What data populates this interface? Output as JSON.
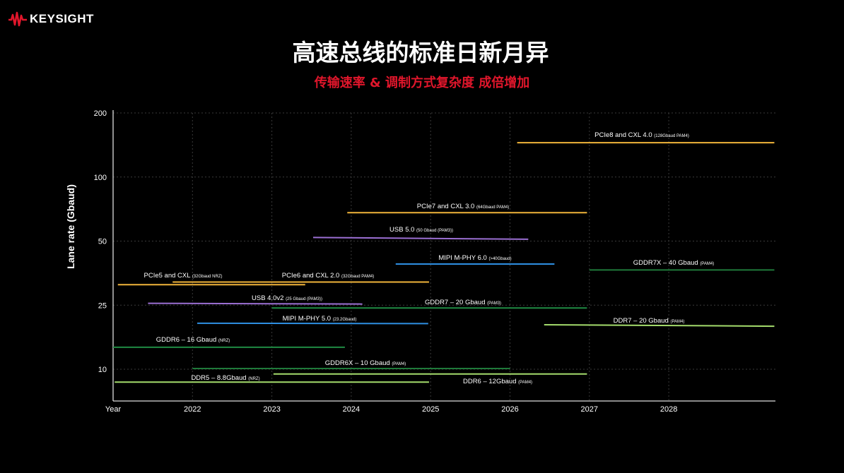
{
  "logo": {
    "text": "KEYSIGHT",
    "color": "#e0162b"
  },
  "header": {
    "title": "高速总线的标准日新月异",
    "subtitle": "传输速率 & 调制方式复杂度 成倍增加"
  },
  "chart_data": {
    "type": "timeline",
    "title": "高速总线的标准日新月异",
    "xlabel": "Year",
    "ylabel": "Lane rate (Gbaud)",
    "x_ticks": [
      "Year",
      "2022",
      "2023",
      "2024",
      "2025",
      "2026",
      "2027",
      "2028"
    ],
    "x_tick_values": [
      2021,
      2022,
      2023,
      2024,
      2025,
      2026,
      2027,
      2028
    ],
    "xlim": [
      2021,
      2029.35
    ],
    "y_ticks": [
      "10",
      "25",
      "50",
      "100",
      "200"
    ],
    "y_tick_values": [
      10,
      25,
      50,
      100,
      200
    ],
    "y_scale": "ordinal-log",
    "grid": true,
    "series": [
      {
        "name": "PCIe8 and CXL 4.0",
        "note": "(128Gbaud PAM4)",
        "x": [
          2026.09,
          2029.33
        ],
        "y": [
          145,
          145
        ],
        "color": "#f0b43a"
      },
      {
        "name": "PCIe7 and CXL 3.0",
        "note": "(64Gbaud PAM4)",
        "x": [
          2023.95,
          2026.97
        ],
        "y": [
          68,
          68
        ],
        "color": "#f0b43a"
      },
      {
        "name": "USB 5.0",
        "note": "(50 Gbaud (PAM3))",
        "x": [
          2023.52,
          2026.23
        ],
        "y": [
          52,
          51
        ],
        "color": "#9b6fd3"
      },
      {
        "name": "MIPI M-PHY 6.0",
        "note": "(>40Gbaud)",
        "x": [
          2024.56,
          2026.56
        ],
        "y": [
          39,
          39
        ],
        "color": "#2e8fe2"
      },
      {
        "name": "GDDR7X – 40 Gbaud",
        "note": "(PAM4)",
        "x": [
          2027.0,
          2029.33
        ],
        "y": [
          36.6,
          36.6
        ],
        "color": "#1f7a3a"
      },
      {
        "name": "PCIe5 and CXL",
        "note": "(32Gbaud NRZ)",
        "x": [
          2021.06,
          2023.42
        ],
        "y": [
          31.2,
          31.2
        ],
        "color": "#f0b43a"
      },
      {
        "name": "PCIe6 and CXL 2.0",
        "note": "(32Gbaud PAM4)",
        "x": [
          2021.75,
          2024.98
        ],
        "y": [
          32.1,
          32.1
        ],
        "color": "#f0b43a"
      },
      {
        "name": "USB 4.0v2",
        "note": "(25 Gbaud (PAM3))",
        "x": [
          2021.44,
          2024.14
        ],
        "y": [
          25.5,
          25.3
        ],
        "color": "#9b6fd3"
      },
      {
        "name": "GDDR7 – 20 Gbaud",
        "note": "(PAM3)",
        "x": [
          2023.0,
          2026.97
        ],
        "y": [
          24.0,
          24.0
        ],
        "color": "#1f8a43"
      },
      {
        "name": "MIPI M-PHY 5.0",
        "note": "(23.2Gbaud)",
        "x": [
          2022.06,
          2024.97
        ],
        "y": [
          19.3,
          19.2
        ],
        "color": "#2e8fe2"
      },
      {
        "name": "DDR7 – 20 Gbaud",
        "note": "(PAM4)",
        "x": [
          2026.43,
          2029.33
        ],
        "y": [
          18.9,
          18.5
        ],
        "color": "#a4dc6c"
      },
      {
        "name": "GDDR6 – 16 Gbaud",
        "note": "(NRZ)",
        "x": [
          2021.0,
          2023.92
        ],
        "y": [
          13.7,
          13.7
        ],
        "color": "#1f8a43"
      },
      {
        "name": "GDDR6X – 10 Gbaud",
        "note": "(PAM4)",
        "x": [
          2022.0,
          2026.0
        ],
        "y": [
          10.1,
          10.1
        ],
        "color": "#1f7a3a"
      },
      {
        "name": "DDR6 – 12Gbaud",
        "note": "(PAM4)",
        "x": [
          2023.02,
          2026.97
        ],
        "y": [
          9.5,
          9.5
        ],
        "color": "#a4dc6c"
      },
      {
        "name": "DDR5 – 8.8Gbaud",
        "note": "(NRZ)",
        "x": [
          2021.02,
          2024.98
        ],
        "y": [
          8.7,
          8.7
        ],
        "color": "#a4dc6c"
      }
    ]
  }
}
